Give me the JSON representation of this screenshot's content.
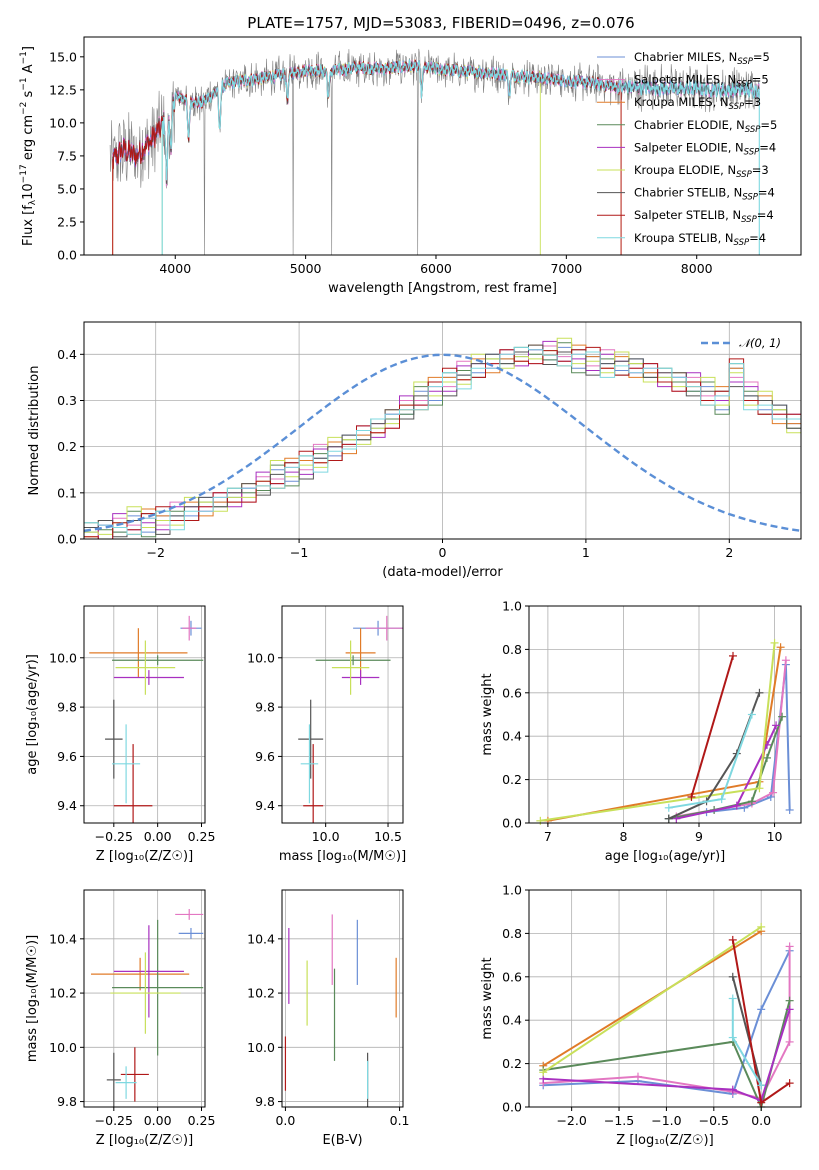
{
  "title": "PLATE=1757, MJD=53083, FIBERID=0496, z=0.076",
  "colors": {
    "Chabrier MILES": "#6b8fd6",
    "Salpeter MILES": "#e377c2",
    "Kroupa MILES": "#e07b28",
    "Chabrier ELODIE": "#5a8a5a",
    "Salpeter ELODIE": "#a830c0",
    "Kroupa ELODIE": "#c8e05a",
    "Chabrier STELIB": "#555555",
    "Salpeter STELIB": "#b01818",
    "Kroupa STELIB": "#7fd8e0",
    "normal": "#5b8fd6",
    "grid": "#b0b0b0"
  },
  "chart_data": [
    {
      "type": "line",
      "panel": "spectrum",
      "xlabel": "wavelength [Angstrom, rest frame]",
      "ylabel_main": "Flux [f",
      "ylabel_sub": "λ",
      "ylabel_rest": "10",
      "ylabel_exp1": "−17",
      "ylabel_mid": " erg cm",
      "ylabel_exp2": "−2",
      "ylabel_mid2": " s",
      "ylabel_exp3": "−1",
      "ylabel_end": " A",
      "ylabel_exp4": "−1",
      "ylabel_close": "]",
      "xlim": [
        3300,
        8800
      ],
      "ylim": [
        0,
        16.5
      ],
      "xticks": [
        4000,
        5000,
        6000,
        7000,
        8000
      ],
      "yticks": [
        0.0,
        2.5,
        5.0,
        7.5,
        10.0,
        12.5,
        15.0
      ],
      "continuum": [
        [
          3500,
          7.0
        ],
        [
          3600,
          8.0
        ],
        [
          3700,
          7.5
        ],
        [
          3800,
          8.5
        ],
        [
          3900,
          9.8
        ],
        [
          4000,
          12.0
        ],
        [
          4200,
          11.5
        ],
        [
          4400,
          13.0
        ],
        [
          4600,
          13.3
        ],
        [
          4800,
          13.6
        ],
        [
          5000,
          14.0
        ],
        [
          5200,
          13.9
        ],
        [
          5400,
          14.2
        ],
        [
          5600,
          14.1
        ],
        [
          5800,
          14.3
        ],
        [
          6000,
          14.1
        ],
        [
          6200,
          13.9
        ],
        [
          6400,
          13.8
        ],
        [
          6600,
          13.6
        ],
        [
          6800,
          13.4
        ],
        [
          7000,
          13.2
        ],
        [
          7200,
          13.0
        ],
        [
          7400,
          12.7
        ],
        [
          7600,
          12.7
        ],
        [
          7800,
          12.6
        ],
        [
          8000,
          12.6
        ],
        [
          8200,
          12.5
        ],
        [
          8400,
          12.5
        ]
      ],
      "wavelength_range": [
        3500,
        8480
      ],
      "legend": [
        {
          "prefix": "Chabrier MILES, N",
          "sub": "SSP",
          "suffix": "=5",
          "key": "Chabrier MILES"
        },
        {
          "prefix": "Salpeter MILES, N",
          "sub": "SSP",
          "suffix": "=5",
          "key": "Salpeter MILES"
        },
        {
          "prefix": "Kroupa MILES, N",
          "sub": "SSP",
          "suffix": "=3",
          "key": "Kroupa MILES"
        },
        {
          "prefix": "Chabrier ELODIE, N",
          "sub": "SSP",
          "suffix": "=5",
          "key": "Chabrier ELODIE"
        },
        {
          "prefix": "Salpeter ELODIE, N",
          "sub": "SSP",
          "suffix": "=4",
          "key": "Salpeter ELODIE"
        },
        {
          "prefix": "Kroupa ELODIE, N",
          "sub": "SSP",
          "suffix": "=3",
          "key": "Kroupa ELODIE"
        },
        {
          "prefix": "Chabrier STELIB, N",
          "sub": "SSP",
          "suffix": "=4",
          "key": "Chabrier STELIB"
        },
        {
          "prefix": "Salpeter STELIB, N",
          "sub": "SSP",
          "suffix": "=4",
          "key": "Salpeter STELIB"
        },
        {
          "prefix": "Kroupa STELIB, N",
          "sub": "SSP",
          "suffix": "=4",
          "key": "Kroupa STELIB"
        }
      ]
    },
    {
      "type": "line",
      "panel": "residual_histogram",
      "xlabel": "(data-model)/error",
      "ylabel": "Normed distribution",
      "xlim": [
        -2.5,
        2.5
      ],
      "ylim": [
        0,
        0.47
      ],
      "xticks": [
        -2,
        -1,
        0,
        1,
        2
      ],
      "yticks": [
        0.0,
        0.1,
        0.2,
        0.3,
        0.4
      ],
      "grid": true,
      "legend_label": "𝒩(0, 1)",
      "legend_position": "top-right",
      "bin_width": 0.1,
      "bins_start": -2.5,
      "base_histogram": [
        0.015,
        0.02,
        0.025,
        0.03,
        0.035,
        0.04,
        0.05,
        0.06,
        0.07,
        0.08,
        0.09,
        0.1,
        0.115,
        0.13,
        0.145,
        0.16,
        0.175,
        0.19,
        0.205,
        0.225,
        0.24,
        0.26,
        0.28,
        0.3,
        0.32,
        0.34,
        0.355,
        0.37,
        0.38,
        0.39,
        0.395,
        0.4,
        0.398,
        0.395,
        0.39,
        0.385,
        0.38,
        0.375,
        0.37,
        0.36,
        0.35,
        0.34,
        0.33,
        0.31,
        0.3,
        0.36,
        0.31,
        0.29,
        0.27,
        0.25,
        0.235,
        0.22,
        0.2,
        0.185,
        0.17,
        0.15,
        0.135,
        0.12,
        0.105,
        0.09,
        0.075,
        0.065,
        0.055,
        0.045,
        0.04,
        0.035,
        0.03,
        0.025,
        0.02,
        0.015
      ],
      "offsets": [
        [
          0.0,
          0.01,
          -0.01,
          0.02,
          -0.02,
          0.01,
          0.0,
          -0.01,
          0.02,
          0.0
        ],
        [
          0.01,
          -0.02,
          0.02,
          0.0,
          0.01,
          -0.01,
          0.03,
          -0.02,
          0.0,
          0.01
        ],
        [
          -0.01,
          0.02,
          0.0,
          -0.02,
          0.03,
          0.01,
          -0.01,
          0.02,
          -0.02,
          0.0
        ],
        [
          0.02,
          0.0,
          -0.01,
          0.03,
          -0.03,
          0.02,
          0.01,
          -0.02,
          0.01,
          -0.01
        ],
        [
          -0.02,
          0.01,
          0.03,
          -0.01,
          0.0,
          -0.02,
          0.02,
          0.01,
          -0.01,
          0.02
        ],
        [
          0.0,
          -0.01,
          0.01,
          0.04,
          -0.01,
          0.0,
          -0.02,
          0.03,
          0.01,
          -0.02
        ],
        [
          0.01,
          0.02,
          -0.02,
          0.01,
          0.02,
          -0.03,
          0.0,
          0.01,
          0.02,
          -0.01
        ],
        [
          -0.01,
          -0.02,
          0.01,
          -0.01,
          0.02,
          0.03,
          -0.01,
          -0.02,
          0.0,
          0.02
        ],
        [
          0.02,
          0.01,
          0.0,
          -0.02,
          0.01,
          0.02,
          -0.03,
          0.0,
          -0.01,
          0.01
        ]
      ]
    },
    {
      "type": "scatter",
      "panel": "age_vs_Z",
      "xlabel": "Z [log₁₀(Z/Z☉)]",
      "ylabel": "age  [log₁₀(age/yr)]",
      "xlim": [
        -0.42,
        0.27
      ],
      "ylim": [
        9.33,
        10.21
      ],
      "xticks": [
        -0.25,
        0.0,
        0.25
      ],
      "yticks": [
        9.4,
        9.6,
        9.8,
        10.0
      ],
      "grid": true,
      "points": [
        {
          "key": "Chabrier MILES",
          "x": 0.19,
          "y": 10.12,
          "xerr": 0.06,
          "yerr": 0.03
        },
        {
          "key": "Salpeter MILES",
          "x": 0.18,
          "y": 10.12,
          "xerr": 0.04,
          "yerr": 0.05
        },
        {
          "key": "Kroupa MILES",
          "x": -0.11,
          "y": 10.02,
          "xerr": 0.28,
          "yerr": 0.1
        },
        {
          "key": "Chabrier ELODIE",
          "x": 0.0,
          "y": 9.99,
          "xerr": 0.26,
          "yerr": 0.02
        },
        {
          "key": "Salpeter ELODIE",
          "x": -0.05,
          "y": 9.92,
          "xerr": 0.2,
          "yerr": 0.03
        },
        {
          "key": "Kroupa ELODIE",
          "x": -0.07,
          "y": 9.96,
          "xerr": 0.17,
          "yerr": 0.11
        },
        {
          "key": "Chabrier STELIB",
          "x": -0.25,
          "y": 9.67,
          "xerr": 0.05,
          "yerr": 0.16
        },
        {
          "key": "Salpeter STELIB",
          "x": -0.14,
          "y": 9.4,
          "xerr": 0.11,
          "yerr": 0.25
        },
        {
          "key": "Kroupa STELIB",
          "x": -0.18,
          "y": 9.57,
          "xerr": 0.08,
          "yerr": 0.16
        }
      ]
    },
    {
      "type": "scatter",
      "panel": "age_vs_mass",
      "xlabel": "mass [log₁₀(M/M☉)]",
      "ylabel": "",
      "xlim": [
        9.65,
        10.62
      ],
      "ylim": [
        9.33,
        10.21
      ],
      "xticks": [
        10.0,
        10.5
      ],
      "yticks": [
        9.4,
        9.6,
        9.8,
        10.0
      ],
      "grid": true,
      "points": [
        {
          "key": "Chabrier MILES",
          "x": 10.42,
          "y": 10.12,
          "xerr": 0.2,
          "yerr": 0.03
        },
        {
          "key": "Salpeter MILES",
          "x": 10.49,
          "y": 10.12,
          "xerr": 0.17,
          "yerr": 0.05
        },
        {
          "key": "Kroupa MILES",
          "x": 10.28,
          "y": 10.02,
          "xerr": 0.12,
          "yerr": 0.1
        },
        {
          "key": "Chabrier ELODIE",
          "x": 10.22,
          "y": 9.99,
          "xerr": 0.3,
          "yerr": 0.02
        },
        {
          "key": "Salpeter ELODIE",
          "x": 10.28,
          "y": 9.92,
          "xerr": 0.15,
          "yerr": 0.03
        },
        {
          "key": "Kroupa ELODIE",
          "x": 10.2,
          "y": 9.96,
          "xerr": 0.15,
          "yerr": 0.11
        },
        {
          "key": "Chabrier STELIB",
          "x": 9.88,
          "y": 9.67,
          "xerr": 0.1,
          "yerr": 0.16
        },
        {
          "key": "Salpeter STELIB",
          "x": 9.9,
          "y": 9.4,
          "xerr": 0.08,
          "yerr": 0.25
        },
        {
          "key": "Kroupa STELIB",
          "x": 9.87,
          "y": 9.57,
          "xerr": 0.07,
          "yerr": 0.16
        }
      ]
    },
    {
      "type": "line",
      "panel": "massweight_vs_age",
      "xlabel": "age  [log₁₀(age/yr)]",
      "ylabel": "mass weight",
      "xlim": [
        6.75,
        10.35
      ],
      "ylim": [
        0,
        1.0
      ],
      "xticks": [
        7,
        8,
        9,
        10
      ],
      "yticks": [
        0.0,
        0.2,
        0.4,
        0.6,
        0.8,
        1.0
      ],
      "grid": true,
      "series": [
        {
          "key": "Chabrier MILES",
          "x": [
            8.6,
            9.1,
            9.6,
            9.95,
            10.15,
            10.2
          ],
          "y": [
            0.02,
            0.05,
            0.07,
            0.12,
            0.73,
            0.06
          ]
        },
        {
          "key": "Salpeter MILES",
          "x": [
            8.7,
            9.2,
            9.7,
            9.98,
            10.15
          ],
          "y": [
            0.03,
            0.06,
            0.09,
            0.14,
            0.75
          ]
        },
        {
          "key": "Kroupa MILES",
          "x": [
            7.0,
            9.8,
            10.08
          ],
          "y": [
            0.01,
            0.19,
            0.81
          ]
        },
        {
          "key": "Chabrier ELODIE",
          "x": [
            8.6,
            9.2,
            9.7,
            9.9,
            10.1
          ],
          "y": [
            0.02,
            0.06,
            0.1,
            0.3,
            0.49
          ]
        },
        {
          "key": "Salpeter ELODIE",
          "x": [
            8.7,
            9.5,
            9.9,
            10.02
          ],
          "y": [
            0.02,
            0.08,
            0.36,
            0.45
          ]
        },
        {
          "key": "Kroupa ELODIE",
          "x": [
            6.9,
            9.8,
            10.0
          ],
          "y": [
            0.01,
            0.16,
            0.83
          ]
        },
        {
          "key": "Chabrier STELIB",
          "x": [
            8.6,
            9.1,
            9.5,
            9.8
          ],
          "y": [
            0.02,
            0.1,
            0.32,
            0.6
          ]
        },
        {
          "key": "Salpeter STELIB",
          "x": [
            8.9,
            9.45
          ],
          "y": [
            0.12,
            0.77
          ]
        },
        {
          "key": "Kroupa STELIB",
          "x": [
            8.6,
            9.3,
            9.7
          ],
          "y": [
            0.07,
            0.11,
            0.5
          ]
        }
      ]
    },
    {
      "type": "scatter",
      "panel": "mass_vs_Z",
      "xlabel": "Z [log₁₀(Z/Z☉)]",
      "ylabel": "mass [log₁₀(M/M☉)]",
      "xlim": [
        -0.42,
        0.27
      ],
      "ylim": [
        9.78,
        10.58
      ],
      "xticks": [
        -0.25,
        0.0,
        0.25
      ],
      "yticks": [
        9.8,
        10.0,
        10.2,
        10.4
      ],
      "grid": true,
      "points": [
        {
          "key": "Chabrier MILES",
          "x": 0.19,
          "y": 10.42,
          "xerr": 0.07,
          "yerr": 0.02
        },
        {
          "key": "Salpeter MILES",
          "x": 0.18,
          "y": 10.49,
          "xerr": 0.08,
          "yerr": 0.02
        },
        {
          "key": "Kroupa MILES",
          "x": -0.1,
          "y": 10.27,
          "xerr": 0.28,
          "yerr": 0.06
        },
        {
          "key": "Chabrier ELODIE",
          "x": 0.0,
          "y": 10.22,
          "xerr": 0.26,
          "yerr": 0.25
        },
        {
          "key": "Salpeter ELODIE",
          "x": -0.05,
          "y": 10.28,
          "xerr": 0.2,
          "yerr": 0.17
        },
        {
          "key": "Kroupa ELODIE",
          "x": -0.07,
          "y": 10.2,
          "xerr": 0.2,
          "yerr": 0.15
        },
        {
          "key": "Chabrier STELIB",
          "x": -0.25,
          "y": 9.88,
          "xerr": 0.04,
          "yerr": 0.1
        },
        {
          "key": "Salpeter STELIB",
          "x": -0.13,
          "y": 9.9,
          "xerr": 0.08,
          "yerr": 0.1
        },
        {
          "key": "Kroupa STELIB",
          "x": -0.18,
          "y": 9.87,
          "xerr": 0.06,
          "yerr": 0.06
        }
      ]
    },
    {
      "type": "scatter",
      "panel": "mass_vs_EBV",
      "xlabel": "E(B-V)",
      "ylabel": "",
      "xlim": [
        -0.003,
        0.103
      ],
      "ylim": [
        9.78,
        10.58
      ],
      "xticks": [
        0.0,
        0.1
      ],
      "yticks": [
        9.8,
        10.0,
        10.2,
        10.4
      ],
      "grid": true,
      "points": [
        {
          "key": "Salpeter STELIB",
          "x": 0.0,
          "y": 9.94,
          "xerr": 0.0,
          "yerr": 0.1
        },
        {
          "key": "Salpeter ELODIE",
          "x": 0.003,
          "y": 10.3,
          "xerr": 0.0,
          "yerr": 0.14
        },
        {
          "key": "Kroupa ELODIE",
          "x": 0.019,
          "y": 10.2,
          "xerr": 0.0,
          "yerr": 0.12
        },
        {
          "key": "Salpeter MILES",
          "x": 0.041,
          "y": 10.36,
          "xerr": 0.0,
          "yerr": 0.13
        },
        {
          "key": "Chabrier ELODIE",
          "x": 0.043,
          "y": 10.12,
          "xerr": 0.0,
          "yerr": 0.17
        },
        {
          "key": "Chabrier MILES",
          "x": 0.063,
          "y": 10.35,
          "xerr": 0.0,
          "yerr": 0.12
        },
        {
          "key": "Chabrier STELIB",
          "x": 0.072,
          "y": 9.88,
          "xerr": 0.0,
          "yerr": 0.1
        },
        {
          "key": "Kroupa STELIB",
          "x": 0.072,
          "y": 9.88,
          "xerr": 0.0,
          "yerr": 0.07
        },
        {
          "key": "Kroupa MILES",
          "x": 0.097,
          "y": 10.22,
          "xerr": 0.0,
          "yerr": 0.11
        }
      ]
    },
    {
      "type": "line",
      "panel": "massweight_vs_Z",
      "xlabel": "Z [log₁₀(Z/Z☉)]",
      "ylabel": "mass weight",
      "xlim": [
        -2.45,
        0.42
      ],
      "ylim": [
        0,
        1.0
      ],
      "xticks": [
        -2.0,
        -1.5,
        -1.0,
        -0.5,
        0.0
      ],
      "yticks": [
        0.0,
        0.2,
        0.4,
        0.6,
        0.8,
        1.0
      ],
      "grid": true,
      "series": [
        {
          "key": "Chabrier MILES",
          "x": [
            -2.3,
            -1.3,
            -0.3,
            0.0,
            0.3
          ],
          "y": [
            0.1,
            0.12,
            0.06,
            0.45,
            0.72
          ]
        },
        {
          "key": "Salpeter MILES",
          "x": [
            -2.3,
            -1.3,
            -0.3,
            0.0,
            0.3,
            0.3
          ],
          "y": [
            0.11,
            0.14,
            0.07,
            0.04,
            0.3,
            0.74
          ]
        },
        {
          "key": "Kroupa MILES",
          "x": [
            -2.3,
            0.0
          ],
          "y": [
            0.19,
            0.81
          ]
        },
        {
          "key": "Chabrier ELODIE",
          "x": [
            -2.3,
            -0.3,
            0.0,
            0.3
          ],
          "y": [
            0.17,
            0.3,
            0.0,
            0.49
          ]
        },
        {
          "key": "Salpeter ELODIE",
          "x": [
            -2.3,
            -0.3,
            0.0,
            0.3
          ],
          "y": [
            0.13,
            0.08,
            0.03,
            0.45
          ]
        },
        {
          "key": "Kroupa ELODIE",
          "x": [
            -2.3,
            0.0
          ],
          "y": [
            0.16,
            0.83
          ]
        },
        {
          "key": "Chabrier STELIB",
          "x": [
            -0.3,
            0.0
          ],
          "y": [
            0.6,
            0.1
          ]
        },
        {
          "key": "Salpeter STELIB",
          "x": [
            -0.3,
            0.0,
            0.3
          ],
          "y": [
            0.77,
            0.02,
            0.11
          ]
        },
        {
          "key": "Kroupa STELIB",
          "x": [
            -0.3,
            -0.3,
            0.0
          ],
          "y": [
            0.5,
            0.32,
            0.1
          ]
        }
      ]
    }
  ]
}
